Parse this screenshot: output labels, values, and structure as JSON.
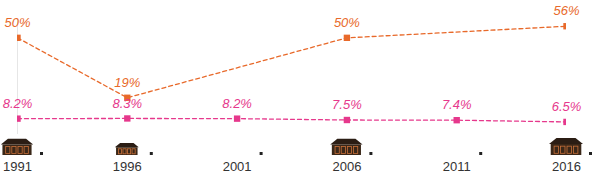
{
  "chart_data": {
    "type": "line",
    "x": [
      1991,
      1996,
      2001,
      2006,
      2011,
      2016
    ],
    "xlim": [
      1991,
      2016
    ],
    "xticks": [
      1991,
      1996,
      2001,
      2006,
      2011,
      2016
    ],
    "ylim": [
      0,
      60
    ],
    "tick_labels": "x",
    "data_labels": true,
    "series": [
      {
        "color": "#e8692a",
        "marker": "square",
        "line_style": "dashed",
        "values": [
          50,
          19,
          null,
          50,
          null,
          56
        ],
        "value_labels": [
          "50%",
          "19%",
          null,
          "50%",
          null,
          "56%"
        ]
      },
      {
        "color": "#e6388c",
        "marker": "square",
        "line_style": "dashed",
        "values": [
          8.2,
          8.3,
          8.2,
          7.5,
          7.4,
          6.5
        ],
        "value_labels": [
          "8.2%",
          "8.3%",
          "8.2%",
          "7.5%",
          "7.4%",
          "6.5%"
        ]
      }
    ]
  }
}
